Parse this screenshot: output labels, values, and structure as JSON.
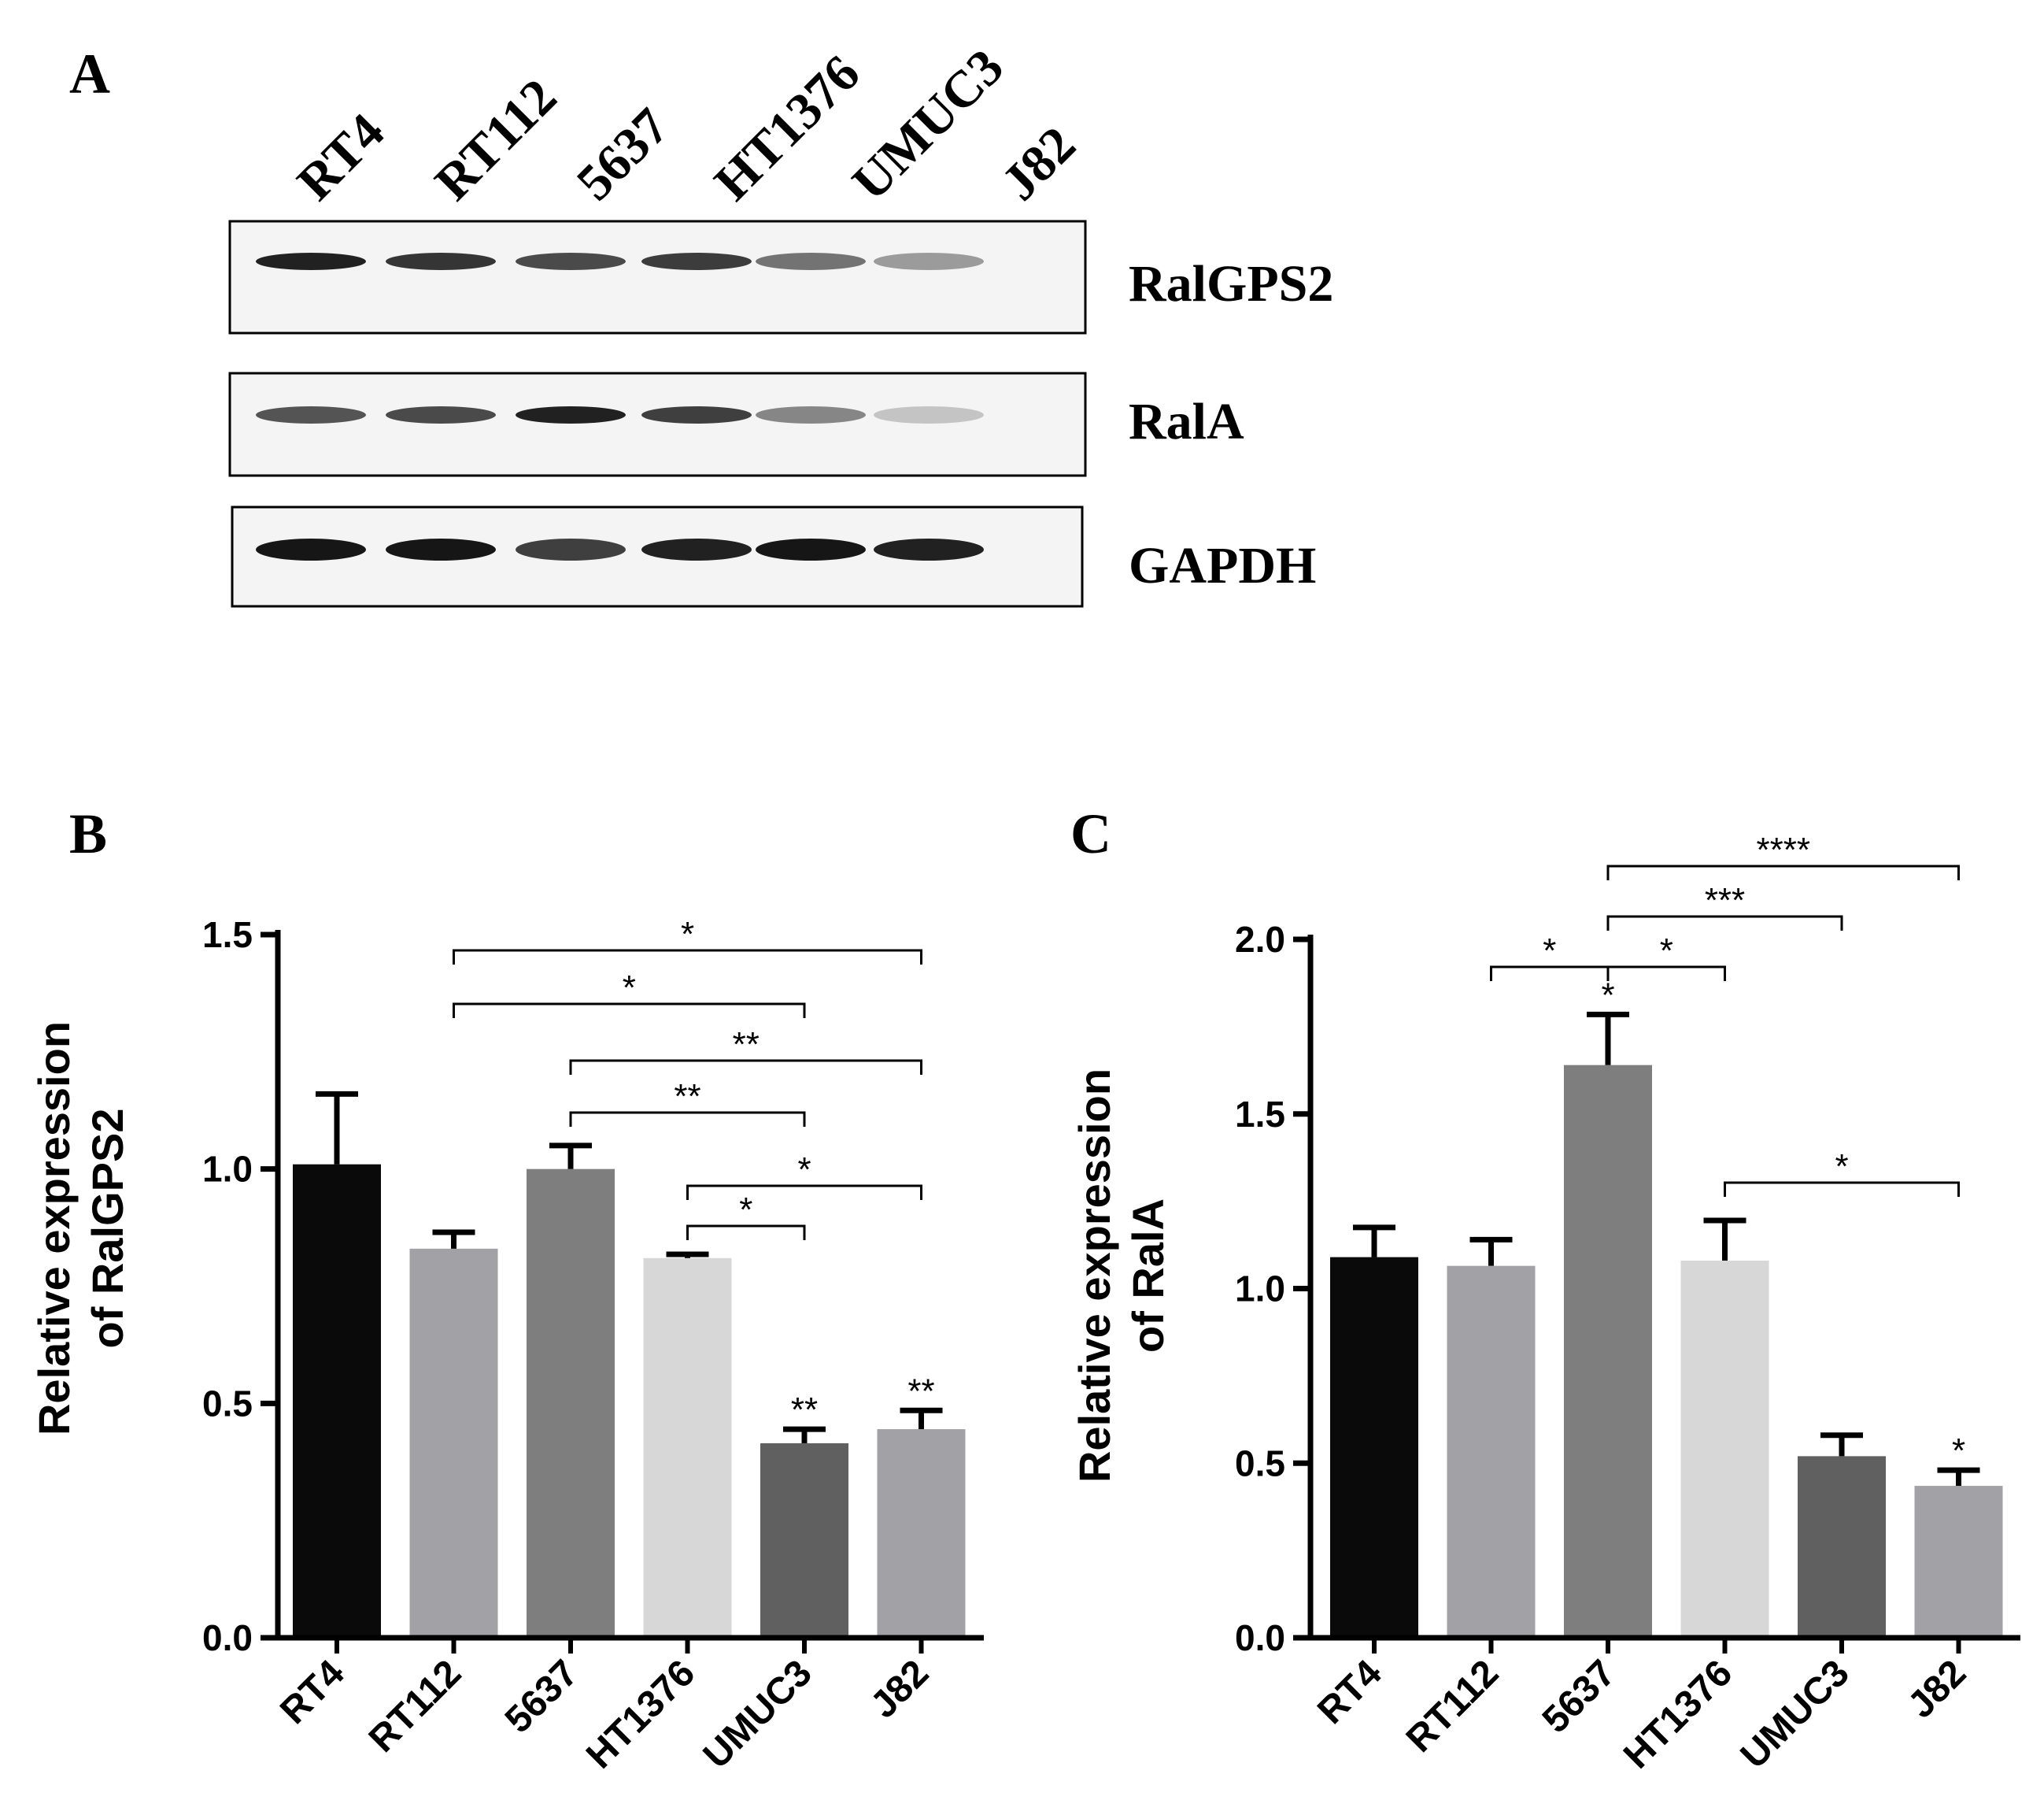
{
  "panel_a": {
    "label": "A",
    "lanes": [
      "RT4",
      "RT112",
      "5637",
      "HT1376",
      "UMUC3",
      "J82"
    ],
    "blots": [
      {
        "name": "RalGPS2",
        "band_intensity": [
          0.95,
          0.85,
          0.75,
          0.82,
          0.55,
          0.35
        ]
      },
      {
        "name": "RalA",
        "band_intensity": [
          0.7,
          0.75,
          0.95,
          0.8,
          0.45,
          0.15
        ]
      },
      {
        "name": "GAPDH",
        "band_intensity": [
          1.0,
          1.0,
          0.8,
          0.95,
          1.0,
          0.95
        ]
      }
    ]
  },
  "chart_data": [
    {
      "panel": "B",
      "type": "bar",
      "ylabel_line1": "Relative expression",
      "ylabel_line2": "of RalGPS2",
      "categories": [
        "RT4",
        "RT112",
        "5637",
        "HT1376",
        "UMUC3",
        "J82"
      ],
      "values": [
        1.01,
        0.83,
        1.0,
        0.81,
        0.415,
        0.445
      ],
      "errors": [
        0.15,
        0.035,
        0.05,
        0.008,
        0.03,
        0.04
      ],
      "colors": [
        "#0a0a0a",
        "#a2a2a6",
        "#7e7e7e",
        "#d7d7d7",
        "#606060",
        "#a2a2a6"
      ],
      "ylim": [
        0,
        1.5
      ],
      "yticks": [
        "0.0",
        "0.5",
        "1.0",
        "1.5"
      ],
      "bar_annotations": [
        {
          "bar": 4,
          "text": "**"
        },
        {
          "bar": 5,
          "text": "**"
        }
      ],
      "brackets": [
        {
          "from": 1,
          "to": 5,
          "text": "*"
        },
        {
          "from": 1,
          "to": 4,
          "text": "*"
        },
        {
          "from": 2,
          "to": 5,
          "text": "**"
        },
        {
          "from": 2,
          "to": 4,
          "text": "**"
        },
        {
          "from": 3,
          "to": 5,
          "text": "*"
        },
        {
          "from": 3,
          "to": 4,
          "text": "*"
        }
      ]
    },
    {
      "panel": "C",
      "type": "bar",
      "ylabel_line1": "Relative expression",
      "ylabel_line2": "of RalA",
      "categories": [
        "RT4",
        "RT112",
        "5637",
        "HT1376",
        "UMUC3",
        "J82"
      ],
      "values": [
        1.09,
        1.065,
        1.64,
        1.08,
        0.52,
        0.435
      ],
      "errors": [
        0.085,
        0.075,
        0.145,
        0.115,
        0.06,
        0.045
      ],
      "colors": [
        "#0a0a0a",
        "#a2a2a6",
        "#7e7e7e",
        "#d7d7d7",
        "#606060",
        "#a2a2a6"
      ],
      "ylim": [
        0,
        2.0
      ],
      "yticks": [
        "0.0",
        "0.5",
        "1.0",
        "1.5",
        "2.0"
      ],
      "bar_annotations": [
        {
          "bar": 2,
          "text": "*"
        },
        {
          "bar": 5,
          "text": "*"
        }
      ],
      "brackets": [
        {
          "from": 2,
          "to": 5,
          "text": "****"
        },
        {
          "from": 2,
          "to": 4,
          "text": "***"
        },
        {
          "from": 1,
          "to": 2,
          "text": "*"
        },
        {
          "from": 2,
          "to": 3,
          "text": "*"
        },
        {
          "from": 3,
          "to": 5,
          "text": "*"
        }
      ]
    }
  ]
}
